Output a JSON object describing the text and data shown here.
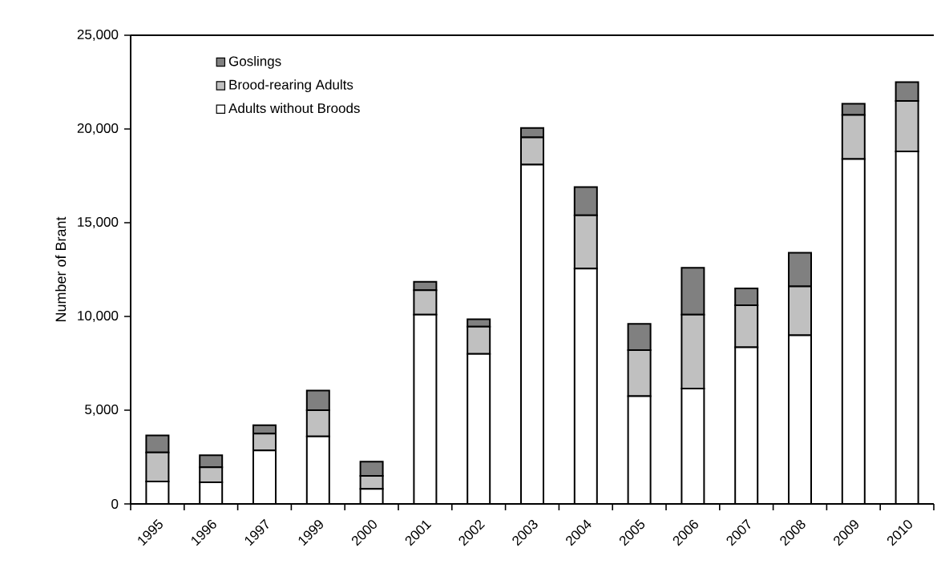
{
  "chart_data": {
    "type": "bar",
    "stacked": true,
    "ylabel": "Number of Brant",
    "categories": [
      "1995",
      "1996",
      "1997",
      "1999",
      "2000",
      "2001",
      "2002",
      "2003",
      "2004",
      "2005",
      "2006",
      "2007",
      "2008",
      "2009",
      "2010"
    ],
    "series": [
      {
        "name": "Adults without Broods",
        "color": "#ffffff",
        "values": [
          1200,
          1150,
          2850,
          3600,
          800,
          10100,
          8000,
          18100,
          12550,
          5750,
          6150,
          8350,
          9000,
          18400,
          18800
        ]
      },
      {
        "name": "Brood-rearing Adults",
        "color": "#c0c0c0",
        "values": [
          1550,
          800,
          900,
          1400,
          700,
          1300,
          1450,
          1450,
          2850,
          2450,
          3950,
          2250,
          2600,
          2350,
          2700
        ]
      },
      {
        "name": "Goslings",
        "color": "#808080",
        "values": [
          900,
          650,
          450,
          1050,
          750,
          450,
          400,
          500,
          1500,
          1400,
          2500,
          900,
          1800,
          600,
          1000
        ]
      }
    ],
    "ylim": [
      0,
      25000
    ],
    "yticks": [
      {
        "value": 0,
        "label": "0"
      },
      {
        "value": 5000,
        "label": "5,000"
      },
      {
        "value": 10000,
        "label": "10,000"
      },
      {
        "value": 15000,
        "label": "15,000"
      },
      {
        "value": 20000,
        "label": "20,000"
      },
      {
        "value": 25000,
        "label": "25,000"
      }
    ],
    "legend": "top left",
    "grid": false
  }
}
